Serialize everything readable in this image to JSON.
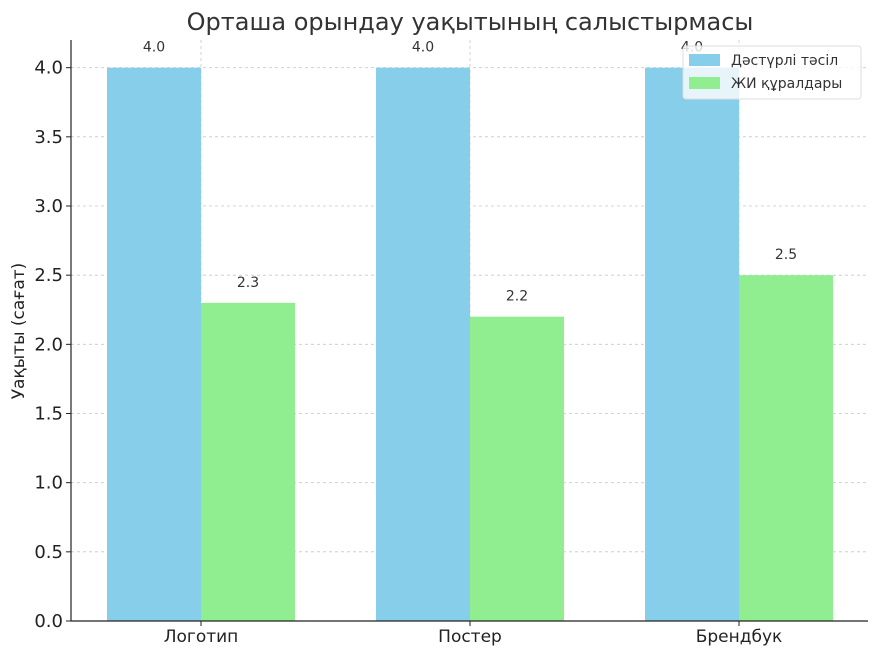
{
  "chart_data": {
    "type": "bar",
    "title": "Орташа орындау уақытының салыстырмасы",
    "xlabel": "",
    "ylabel": "Уақыты (сағат)",
    "categories": [
      "Логотип",
      "Постер",
      "Брендбук"
    ],
    "series": [
      {
        "name": "Дәстүрлі тәсіл",
        "values": [
          4.0,
          4.0,
          4.0
        ],
        "color": "#87ceeb"
      },
      {
        "name": "ЖИ құралдары",
        "values": [
          2.3,
          2.2,
          2.5
        ],
        "color": "#90ee90"
      }
    ],
    "data_labels": [
      [
        "4.0",
        "4.0",
        "4.0"
      ],
      [
        "2.3",
        "2.2",
        "2.5"
      ]
    ],
    "ylim": [
      0,
      4.2
    ],
    "yticks": [
      "0.0",
      "0.5",
      "1.0",
      "1.5",
      "2.0",
      "2.5",
      "3.0",
      "3.5",
      "4.0"
    ],
    "grid": true,
    "legend_position": "top-right"
  }
}
